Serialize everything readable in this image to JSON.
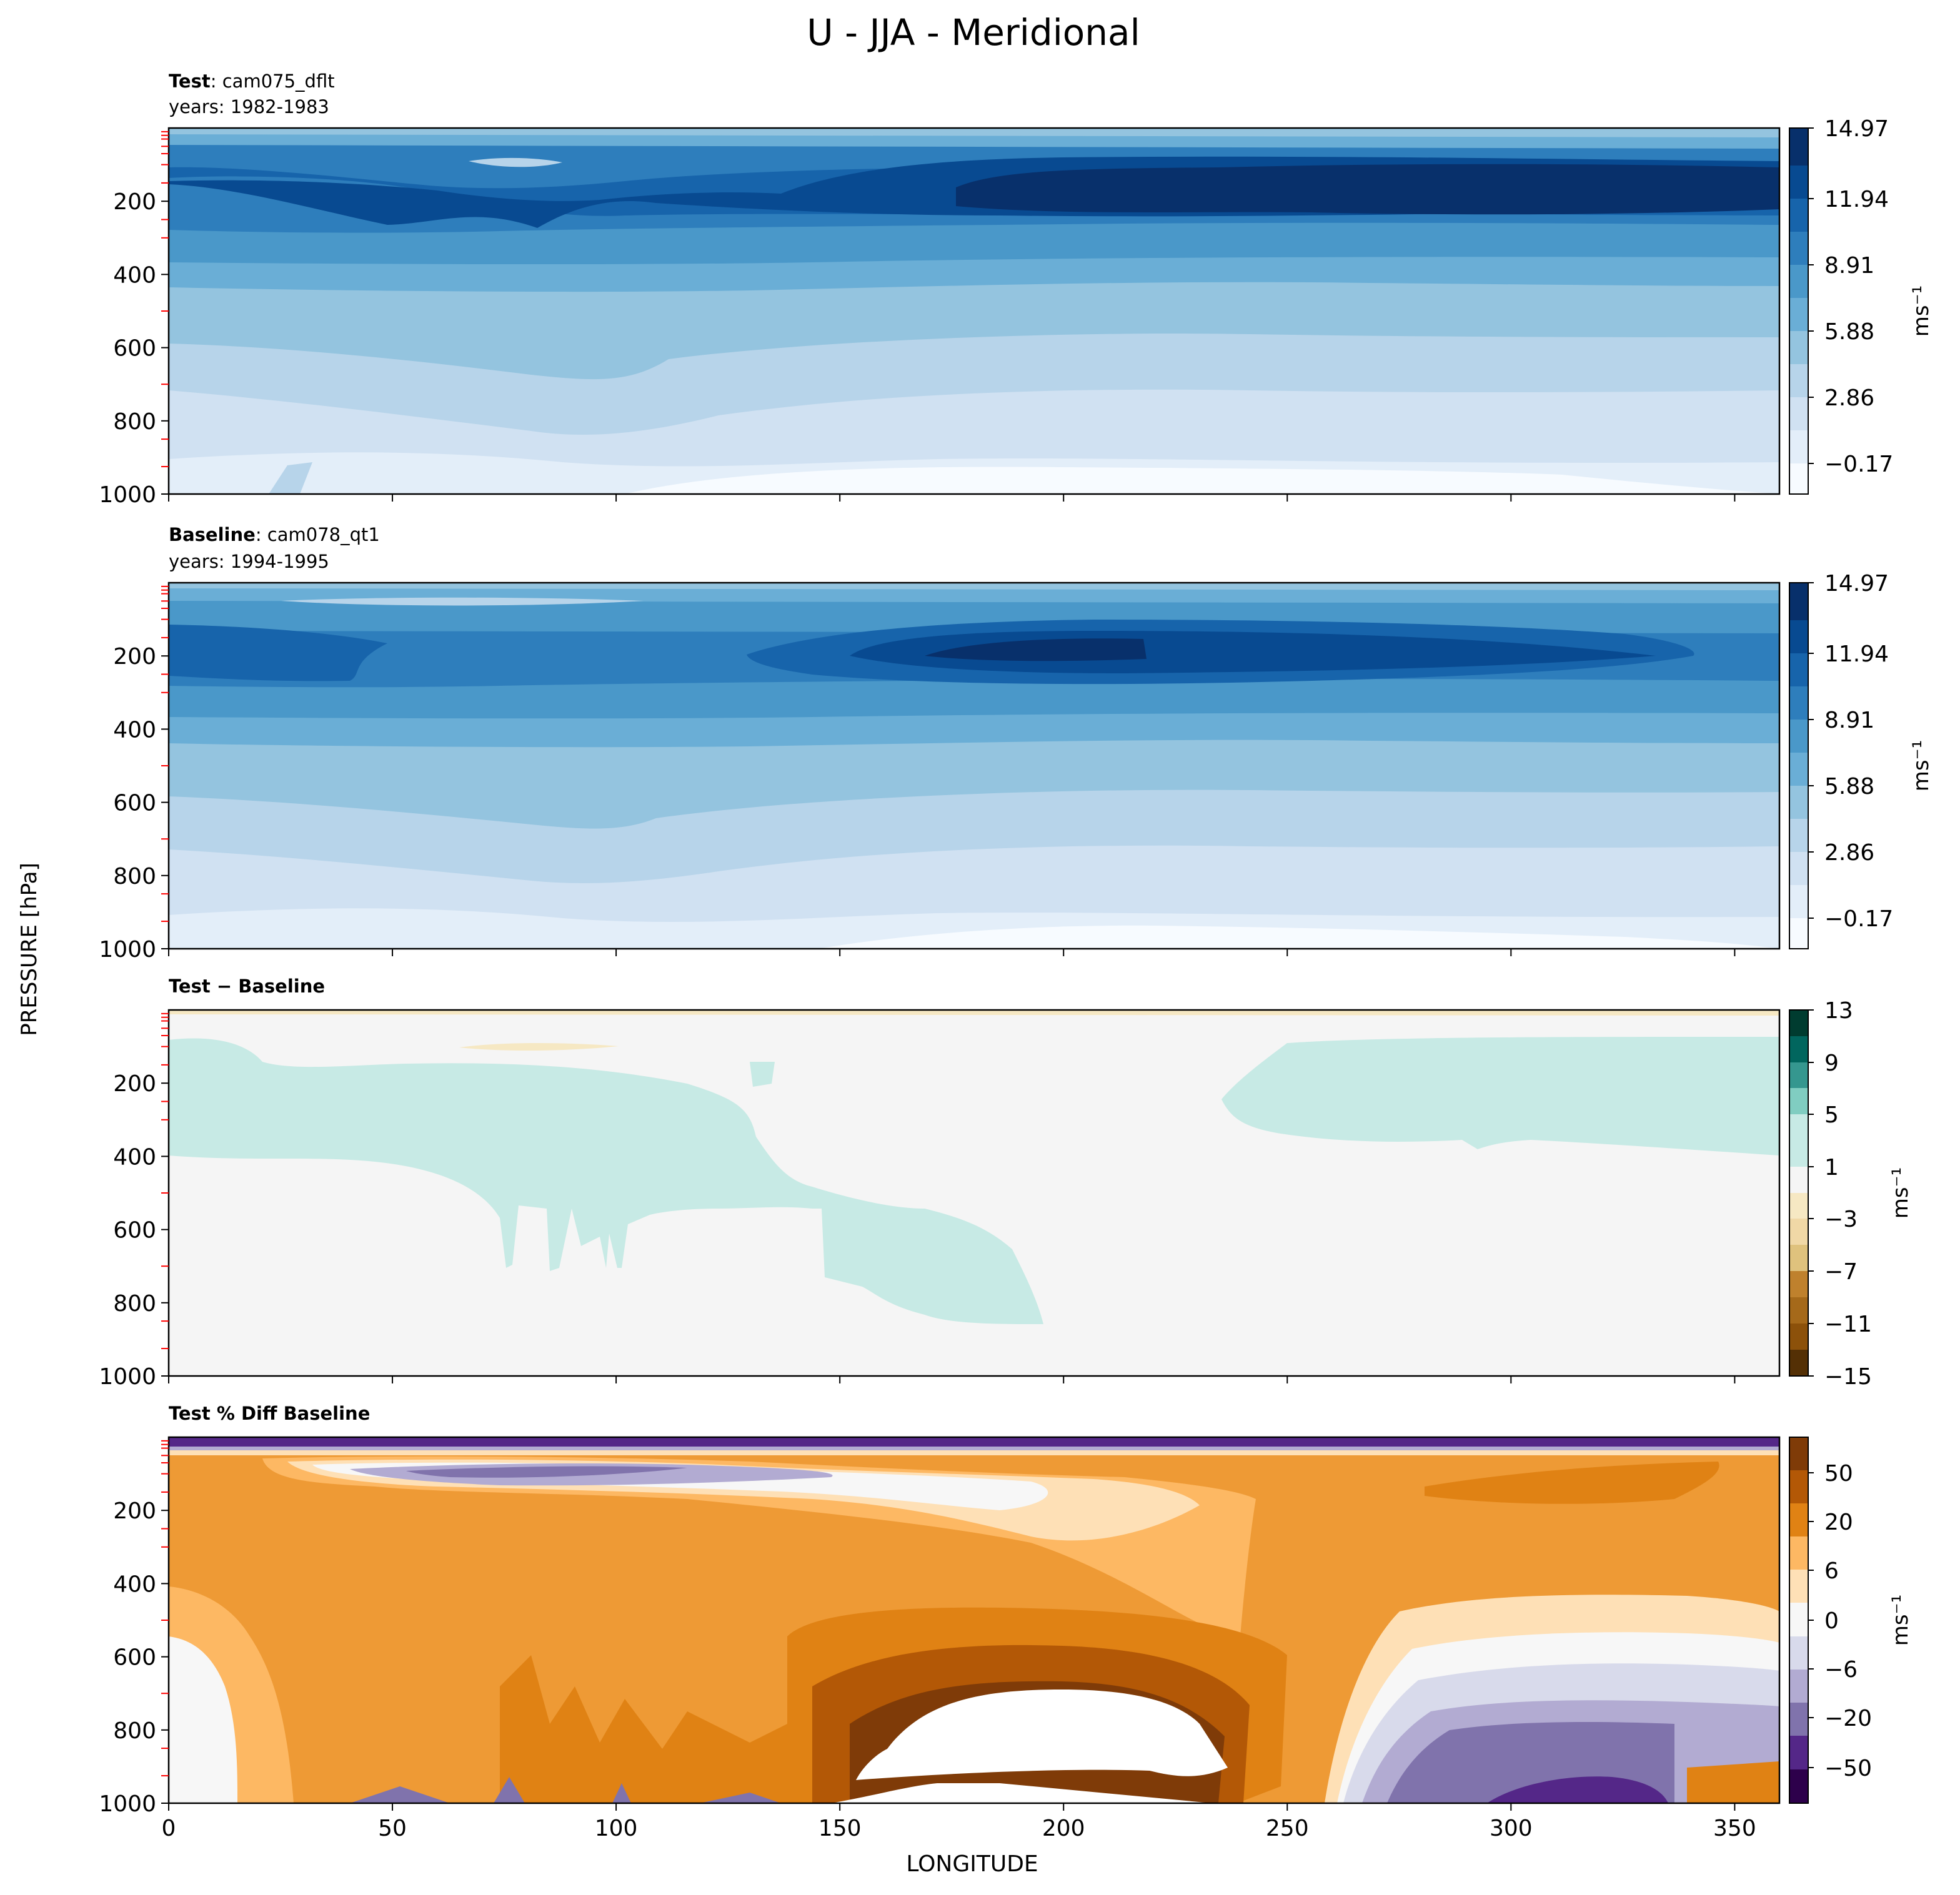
{
  "chart_data": {
    "type": "contour",
    "title": "U - JJA - Meridional",
    "xlabel": "LONGITUDE",
    "ylabel": "PRESSURE [hPa]",
    "xlim": [
      0,
      360
    ],
    "ylim": [
      1000,
      0
    ],
    "x_ticks": [
      "0",
      "50",
      "100",
      "150",
      "200",
      "250",
      "300",
      "350"
    ],
    "x_tick_values": [
      0,
      50,
      100,
      150,
      200,
      250,
      300,
      350
    ],
    "y_ticks": [
      "200",
      "400",
      "600",
      "800",
      "1000"
    ],
    "y_tick_values": [
      200,
      400,
      600,
      800,
      1000
    ],
    "panels": [
      {
        "key": "test",
        "title_bold": "Test",
        "title_rest": ": cam075_dflt",
        "subtitle": "years: 1982-1983",
        "colorbar_label": "ms⁻¹",
        "colorbar_ticks": [
          "14.97",
          "11.94",
          "8.91",
          "5.88",
          "2.86",
          "−0.17"
        ],
        "colorbar_values": [
          14.97,
          11.94,
          8.91,
          5.88,
          2.86,
          -0.17
        ],
        "colormap": [
          "#f7fbff",
          "#e3eef9",
          "#d0e1f2",
          "#b7d4ea",
          "#94c4df",
          "#6aaed6",
          "#4a98c9",
          "#2e7ebc",
          "#1764ab",
          "#084a91",
          "#08306b"
        ],
        "jet_core_200hPa_max": 14.97
      },
      {
        "key": "baseline",
        "title_bold": "Baseline",
        "title_rest": ": cam078_qt1",
        "subtitle": "years: 1994-1995",
        "colorbar_label": "ms⁻¹",
        "colorbar_ticks": [
          "14.97",
          "11.94",
          "8.91",
          "5.88",
          "2.86",
          "−0.17"
        ],
        "colorbar_values": [
          14.97,
          11.94,
          8.91,
          5.88,
          2.86,
          -0.17
        ],
        "colormap": [
          "#f7fbff",
          "#e3eef9",
          "#d0e1f2",
          "#b7d4ea",
          "#94c4df",
          "#6aaed6",
          "#4a98c9",
          "#2e7ebc",
          "#1764ab",
          "#084a91",
          "#08306b"
        ]
      },
      {
        "key": "diff",
        "title_bold": "Test − Baseline",
        "title_rest": "",
        "subtitle": "",
        "colorbar_label": "ms⁻¹",
        "colorbar_ticks": [
          "13",
          "9",
          "5",
          "1",
          "−3",
          "−7",
          "−11",
          "−15"
        ],
        "colorbar_values": [
          13,
          9,
          5,
          1,
          -3,
          -7,
          -11,
          -15
        ],
        "colormap": [
          "#543005",
          "#8c510a",
          "#bf812d",
          "#dfc27d",
          "#f6e8c3",
          "#f5f5f5",
          "#c7eae5",
          "#80cdc1",
          "#35978f",
          "#01665e",
          "#003c30"
        ]
      },
      {
        "key": "pctdiff",
        "title_bold": "Test % Diff Baseline",
        "title_rest": "",
        "subtitle": "",
        "colorbar_label": "ms⁻¹",
        "colorbar_ticks": [
          "50",
          "20",
          "6",
          "0",
          "−6",
          "−20",
          "−50"
        ],
        "colorbar_values": [
          50,
          20,
          6,
          0,
          -6,
          -20,
          -50
        ],
        "colormap": [
          "#2d004b",
          "#542788",
          "#8073ac",
          "#b2abd2",
          "#d8daeb",
          "#f7f7f7",
          "#fee0b6",
          "#fdb863",
          "#e08214",
          "#b35806",
          "#7f3b08"
        ]
      }
    ]
  }
}
